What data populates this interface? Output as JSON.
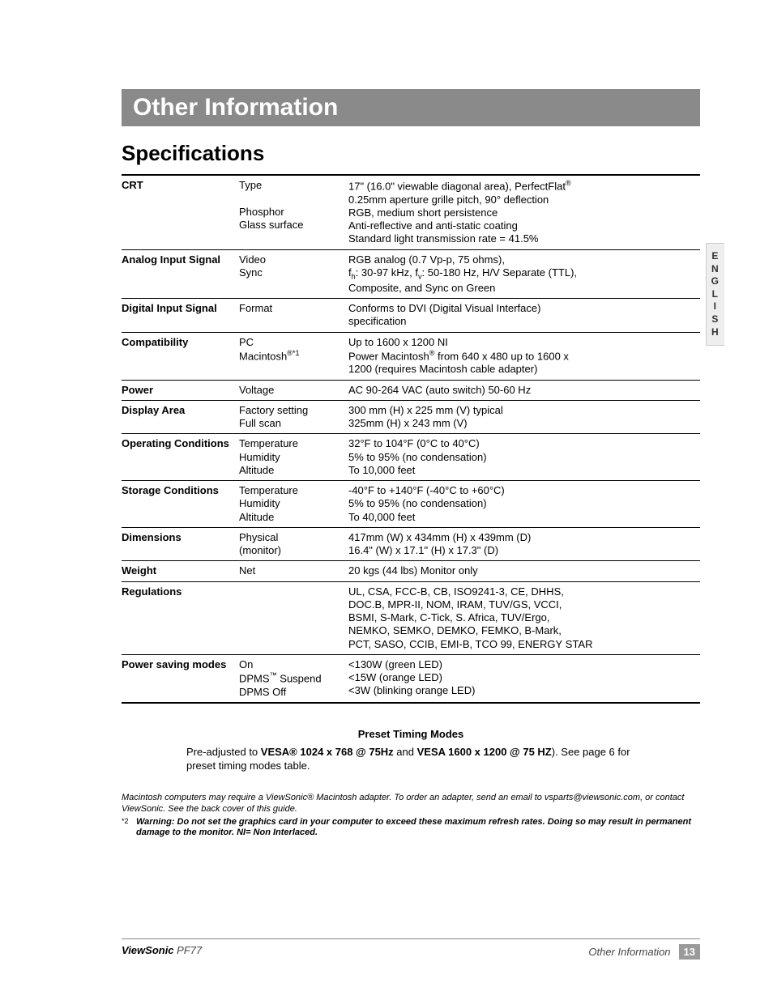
{
  "title_bar": "Other Information",
  "subtitle": "Specifications",
  "lang_tab": "E\nN\nG\nL\nI\nS\nH",
  "rows": [
    {
      "cat": "CRT",
      "labels": [
        "Type",
        " ",
        "Phosphor",
        "Glass surface",
        " "
      ],
      "values": [
        "17\" (16.0\" viewable diagonal area), PerfectFlat®",
        "0.25mm aperture grille pitch, 90° deflection",
        "RGB, medium short persistence",
        "Anti-reflective and anti-static coating",
        "Standard light transmission rate = 41.5%"
      ]
    },
    {
      "cat": "Analog Input Signal",
      "labels": [
        "Video",
        "Sync",
        " "
      ],
      "values": [
        "RGB analog (0.7 Vp-p, 75 ohms),",
        "fh: 30-97 kHz, fv: 50-180 Hz, H/V Separate (TTL),",
        "Composite, and Sync on Green"
      ]
    },
    {
      "cat": "Digital Input Signal",
      "labels": [
        "Format",
        " "
      ],
      "values": [
        "Conforms to DVI (Digital Visual Interface)",
        "specification"
      ]
    },
    {
      "cat": "Compatibility",
      "labels": [
        "PC",
        "Macintosh®*1",
        " "
      ],
      "values": [
        "Up to 1600 x 1200 NI",
        "Power Macintosh® from 640 x 480 up to 1600 x",
        "1200 (requires Macintosh cable adapter)"
      ]
    },
    {
      "cat": "Power",
      "labels": [
        "Voltage"
      ],
      "values": [
        "AC 90-264 VAC (auto switch) 50-60 Hz"
      ]
    },
    {
      "cat": "Display Area",
      "labels": [
        "Factory setting",
        "Full scan"
      ],
      "values": [
        "300 mm (H) x 225 mm (V) typical",
        "325mm (H) x 243 mm (V)"
      ]
    },
    {
      "cat": "Operating Conditions",
      "labels": [
        "Temperature",
        "Humidity",
        "Altitude"
      ],
      "values": [
        "32°F to 104°F (0°C to 40°C)",
        "5% to 95% (no condensation)",
        "To 10,000 feet"
      ]
    },
    {
      "cat": "Storage Conditions",
      "labels": [
        "Temperature",
        "Humidity",
        "Altitude"
      ],
      "values": [
        "-40°F to +140°F (-40°C to +60°C)",
        "5% to 95% (no condensation)",
        "To 40,000 feet"
      ]
    },
    {
      "cat": "Dimensions",
      "labels": [
        "Physical",
        "(monitor)"
      ],
      "values": [
        "417mm (W) x 434mm (H) x 439mm (D)",
        "16.4\" (W) x 17.1\" (H) x 17.3\" (D)"
      ]
    },
    {
      "cat": "Weight",
      "labels": [
        "Net"
      ],
      "values": [
        "20 kgs (44 lbs) Monitor only"
      ]
    },
    {
      "cat": "Regulations",
      "labels": [
        " ",
        " ",
        " ",
        " ",
        " "
      ],
      "values": [
        "UL, CSA, FCC-B, CB, ISO9241-3, CE, DHHS,",
        "DOC.B, MPR-II, NOM, IRAM, TUV/GS, VCCI,",
        "BSMI, S-Mark, C-Tick, S. Africa, TUV/Ergo,",
        "NEMKO, SEMKO, DEMKO, FEMKO, B-Mark,",
        "PCT, SASO, CCIB, EMI-B, TCO 99, ENERGY STAR"
      ]
    },
    {
      "cat": "Power saving modes",
      "labels": [
        "On",
        "DPMS™ Suspend",
        "DPMS Off"
      ],
      "values": [
        "<130W (green LED)",
        "<15W (orange LED)",
        "<3W (blinking orange LED)"
      ]
    }
  ],
  "preset_heading": "Preset Timing Modes",
  "preset_pre": "Pre-adjusted to ",
  "preset_bold1": "VESA® 1024 x 768 @ 75Hz",
  "preset_mid": " and ",
  "preset_bold2": "VESA 1600 x 1200 @ 75 HZ",
  "preset_post": "). See page 6 for preset timing modes table.",
  "footnote1": "Macintosh computers may require a ViewSonic® Macintosh adapter. To order an adapter, send an email to vsparts@viewsonic.com, or contact ViewSonic. See the back cover of this guide.",
  "footnote2_marker": "*2",
  "footnote2": "Warning: Do not set the graphics card in your computer to exceed these maximum refresh rates. Doing so may result in permanent damage to the monitor. NI= Non Interlaced.",
  "footer_brand_bold": "ViewSonic",
  "footer_brand_rest": " PF77",
  "footer_section": "Other Information",
  "footer_page": "13"
}
